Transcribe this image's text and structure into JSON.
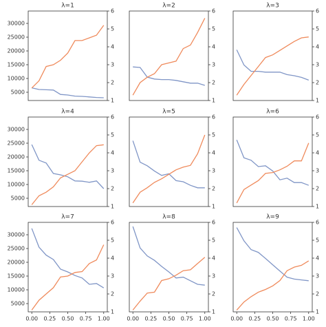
{
  "chart_data": [
    {
      "type": "line",
      "title": "λ=1",
      "x": [
        0,
        0.1,
        0.2,
        0.3,
        0.4,
        0.5,
        0.6,
        0.7,
        0.8,
        0.9,
        1.0
      ],
      "xlim": [
        -0.05,
        1.05
      ],
      "ylim": [
        2000,
        34500
      ],
      "yticks": [
        5000,
        10000,
        15000,
        20000,
        25000,
        30000
      ],
      "y2lim": [
        1,
        6
      ],
      "y2ticks": [
        1,
        2,
        3,
        4,
        5,
        6
      ],
      "series": [
        {
          "color": "#7f95c6",
          "values": [
            6600,
            6000,
            5900,
            5800,
            4200,
            4000,
            3600,
            3500,
            3300,
            3100,
            3000
          ]
        },
        {
          "color": "#ef8a5b",
          "axis": "y2",
          "values": [
            1.7,
            2.1,
            2.9,
            3.0,
            3.25,
            3.65,
            4.35,
            4.35,
            4.5,
            4.65,
            5.2
          ]
        }
      ]
    },
    {
      "type": "line",
      "title": "λ=2",
      "x": [
        0,
        0.1,
        0.2,
        0.3,
        0.4,
        0.5,
        0.6,
        0.7,
        0.8,
        0.9,
        1.0
      ],
      "xlim": [
        -0.05,
        1.05
      ],
      "ylim": [
        2000,
        34500
      ],
      "y2lim": [
        1,
        6
      ],
      "y2ticks": [
        1,
        2,
        3,
        4,
        5,
        6
      ],
      "series": [
        {
          "color": "#7f95c6",
          "values": [
            14200,
            14000,
            10500,
            9800,
            9600,
            9600,
            9300,
            8800,
            8300,
            8300,
            7500
          ]
        },
        {
          "color": "#ef8a5b",
          "axis": "y2",
          "values": [
            1.3,
            2.0,
            2.3,
            2.5,
            3.0,
            3.1,
            3.2,
            3.9,
            4.1,
            4.8,
            5.6
          ]
        }
      ]
    },
    {
      "type": "line",
      "title": "λ=3",
      "x": [
        0,
        0.1,
        0.2,
        0.3,
        0.4,
        0.5,
        0.6,
        0.7,
        0.8,
        0.9,
        1.0
      ],
      "xlim": [
        -0.05,
        1.05
      ],
      "ylim": [
        2000,
        34500
      ],
      "y2lim": [
        1,
        6
      ],
      "y2ticks": [
        1,
        2,
        3,
        4,
        5,
        6
      ],
      "series": [
        {
          "color": "#7f95c6",
          "values": [
            20400,
            14900,
            12600,
            12600,
            12300,
            12300,
            12300,
            11400,
            11000,
            10400,
            9400
          ]
        },
        {
          "color": "#ef8a5b",
          "axis": "y2",
          "values": [
            1.3,
            1.9,
            2.4,
            2.9,
            3.4,
            3.55,
            3.8,
            4.05,
            4.3,
            4.5,
            4.55
          ]
        }
      ]
    },
    {
      "type": "line",
      "title": "λ=4",
      "x": [
        0,
        0.1,
        0.2,
        0.3,
        0.4,
        0.5,
        0.6,
        0.7,
        0.8,
        0.9,
        1.0
      ],
      "xlim": [
        -0.05,
        1.05
      ],
      "ylim": [
        2000,
        34500
      ],
      "yticks": [
        5000,
        10000,
        15000,
        20000,
        25000,
        30000
      ],
      "y2lim": [
        1,
        6
      ],
      "y2ticks": [
        1,
        2,
        3,
        4,
        5,
        6
      ],
      "series": [
        {
          "color": "#7f95c6",
          "values": [
            24500,
            18800,
            17800,
            14000,
            13500,
            12800,
            11300,
            11200,
            10800,
            11300,
            8500
          ]
        },
        {
          "color": "#ef8a5b",
          "axis": "y2",
          "values": [
            1.1,
            1.6,
            1.8,
            2.1,
            2.6,
            2.8,
            3.0,
            3.5,
            4.0,
            4.4,
            4.45
          ]
        }
      ]
    },
    {
      "type": "line",
      "title": "λ=5",
      "x": [
        0,
        0.1,
        0.2,
        0.3,
        0.4,
        0.5,
        0.6,
        0.7,
        0.8,
        0.9,
        1.0
      ],
      "xlim": [
        -0.05,
        1.05
      ],
      "ylim": [
        2000,
        34500
      ],
      "y2lim": [
        1,
        6
      ],
      "y2ticks": [
        1,
        2,
        3,
        4,
        5,
        6
      ],
      "series": [
        {
          "color": "#7f95c6",
          "values": [
            25900,
            18100,
            16800,
            14900,
            13300,
            13900,
            11400,
            11000,
            9700,
            8800,
            8800
          ]
        },
        {
          "color": "#ef8a5b",
          "axis": "y2",
          "values": [
            1.2,
            1.8,
            2.05,
            2.35,
            2.55,
            2.8,
            3.05,
            3.2,
            3.3,
            3.95,
            5.0
          ]
        }
      ]
    },
    {
      "type": "line",
      "title": "λ=6",
      "x": [
        0,
        0.1,
        0.2,
        0.3,
        0.4,
        0.5,
        0.6,
        0.7,
        0.8,
        0.9,
        1.0
      ],
      "xlim": [
        -0.05,
        1.05
      ],
      "ylim": [
        2000,
        34500
      ],
      "y2lim": [
        1,
        6
      ],
      "y2ticks": [
        1,
        2,
        3,
        4,
        5,
        6
      ],
      "series": [
        {
          "color": "#7f95c6",
          "values": [
            26200,
            19700,
            18800,
            16500,
            16800,
            14900,
            11700,
            12300,
            10700,
            10700,
            9700
          ]
        },
        {
          "color": "#ef8a5b",
          "axis": "y2",
          "values": [
            1.2,
            1.95,
            2.2,
            2.45,
            2.85,
            2.9,
            3.05,
            3.25,
            3.55,
            3.55,
            4.55
          ]
        }
      ]
    },
    {
      "type": "line",
      "title": "λ=7",
      "x": [
        0,
        0.1,
        0.2,
        0.3,
        0.4,
        0.5,
        0.6,
        0.7,
        0.8,
        0.9,
        1.0
      ],
      "xlim": [
        -0.05,
        1.05
      ],
      "xticks": [
        {
          "value": 0,
          "label": "0.00"
        },
        {
          "value": 0.25,
          "label": "0.25"
        },
        {
          "value": 0.5,
          "label": "0.50"
        },
        {
          "value": 0.75,
          "label": "0.75"
        },
        {
          "value": 1,
          "label": "1.00"
        }
      ],
      "ylim": [
        2000,
        34500
      ],
      "yticks": [
        5000,
        10000,
        15000,
        20000,
        25000,
        30000
      ],
      "y2lim": [
        1,
        6
      ],
      "y2ticks": [
        1,
        2,
        3,
        4,
        5,
        6
      ],
      "series": [
        {
          "color": "#7f95c6",
          "values": [
            32300,
            25500,
            22600,
            21000,
            17500,
            16500,
            15200,
            14300,
            12000,
            12300,
            10700
          ]
        },
        {
          "color": "#ef8a5b",
          "axis": "y2",
          "values": [
            1.1,
            1.65,
            2.0,
            2.35,
            2.95,
            3.0,
            3.2,
            3.25,
            3.7,
            3.9,
            4.75
          ]
        }
      ]
    },
    {
      "type": "line",
      "title": "λ=8",
      "x": [
        0,
        0.1,
        0.2,
        0.3,
        0.4,
        0.5,
        0.6,
        0.7,
        0.8,
        0.9,
        1.0
      ],
      "xlim": [
        -0.05,
        1.05
      ],
      "xticks": [
        {
          "value": 0,
          "label": "0.00"
        },
        {
          "value": 0.25,
          "label": "0.25"
        },
        {
          "value": 0.5,
          "label": "0.50"
        },
        {
          "value": 0.75,
          "label": "0.75"
        },
        {
          "value": 1,
          "label": "1.00"
        }
      ],
      "ylim": [
        2000,
        34500
      ],
      "y2lim": [
        1,
        6
      ],
      "y2ticks": [
        1,
        2,
        3,
        4,
        5,
        6
      ],
      "series": [
        {
          "color": "#7f95c6",
          "values": [
            33000,
            25200,
            22300,
            20700,
            18500,
            16500,
            14300,
            14600,
            13300,
            12000,
            11700
          ]
        },
        {
          "color": "#ef8a5b",
          "axis": "y2",
          "values": [
            1.1,
            1.6,
            2.05,
            2.1,
            2.75,
            2.85,
            3.05,
            3.3,
            3.35,
            3.7,
            4.05
          ]
        }
      ]
    },
    {
      "type": "line",
      "title": "λ=9",
      "x": [
        0,
        0.1,
        0.2,
        0.3,
        0.4,
        0.5,
        0.6,
        0.7,
        0.8,
        0.9,
        1.0
      ],
      "xlim": [
        -0.05,
        1.05
      ],
      "xticks": [
        {
          "value": 0,
          "label": "0.00"
        },
        {
          "value": 0.25,
          "label": "0.25"
        },
        {
          "value": 0.5,
          "label": "0.50"
        },
        {
          "value": 0.75,
          "label": "0.75"
        },
        {
          "value": 1,
          "label": "1.00"
        }
      ],
      "ylim": [
        2000,
        34500
      ],
      "y2lim": [
        1,
        6
      ],
      "y2ticks": [
        1,
        2,
        3,
        4,
        5,
        6
      ],
      "series": [
        {
          "color": "#7f95c6",
          "values": [
            32600,
            27800,
            24600,
            23600,
            21400,
            19100,
            16800,
            14600,
            13900,
            13600,
            13300
          ]
        },
        {
          "color": "#ef8a5b",
          "axis": "y2",
          "values": [
            1.1,
            1.55,
            1.85,
            2.1,
            2.25,
            2.45,
            2.75,
            3.3,
            3.5,
            3.6,
            3.85
          ]
        }
      ]
    }
  ]
}
